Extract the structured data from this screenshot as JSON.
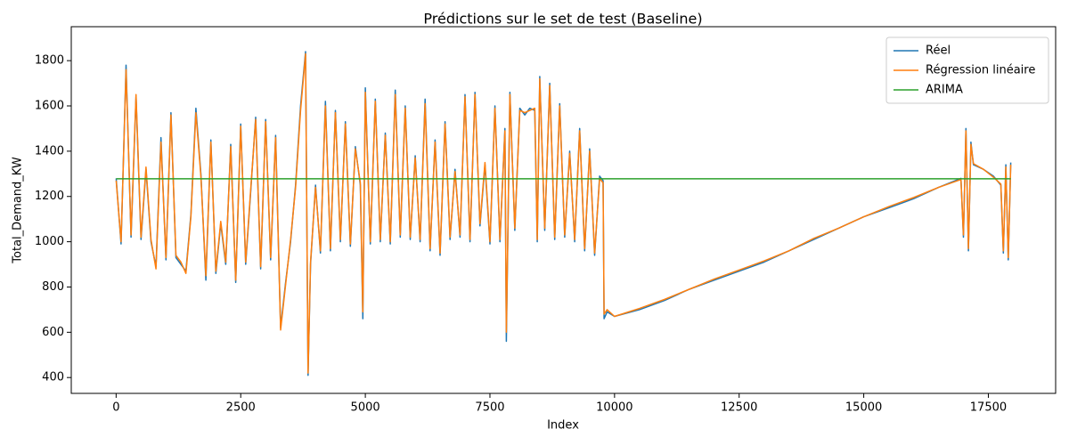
{
  "chart_data": {
    "type": "line",
    "title": "Prédictions sur le set de test (Baseline)",
    "x_label": "Index",
    "y_label": "Total_Demand_KW",
    "xlim": [
      -900,
      18850
    ],
    "ylim": [
      330,
      1950
    ],
    "xticks": [
      0,
      2500,
      5000,
      7500,
      10000,
      12500,
      15000,
      17500
    ],
    "yticks": [
      400,
      600,
      800,
      1000,
      1200,
      1400,
      1600,
      1800
    ],
    "legend": "upper-right",
    "series": [
      {
        "name": "Réel",
        "color": "#1f77b4",
        "x": [
          0,
          100,
          200,
          300,
          400,
          500,
          600,
          700,
          800,
          900,
          1000,
          1100,
          1200,
          1300,
          1400,
          1500,
          1600,
          1700,
          1800,
          1900,
          2000,
          2100,
          2200,
          2300,
          2400,
          2500,
          2600,
          2700,
          2800,
          2900,
          3000,
          3100,
          3200,
          3300,
          3400,
          3500,
          3600,
          3700,
          3800,
          3850,
          3900,
          4000,
          4100,
          4200,
          4300,
          4400,
          4500,
          4600,
          4700,
          4800,
          4900,
          4950,
          5000,
          5100,
          5200,
          5300,
          5400,
          5500,
          5600,
          5700,
          5800,
          5900,
          6000,
          6100,
          6200,
          6300,
          6400,
          6500,
          6600,
          6700,
          6800,
          6900,
          7000,
          7100,
          7200,
          7300,
          7400,
          7500,
          7600,
          7700,
          7800,
          7830,
          7900,
          8000,
          8100,
          8200,
          8300,
          8400,
          8450,
          8500,
          8600,
          8700,
          8800,
          8900,
          9000,
          9100,
          9200,
          9300,
          9400,
          9500,
          9600,
          9700,
          9770,
          9790,
          9850,
          10000,
          10500,
          11000,
          11500,
          12000,
          12500,
          13000,
          13500,
          14000,
          14500,
          15000,
          15500,
          16000,
          16500,
          16950,
          17000,
          17050,
          17100,
          17150,
          17200,
          17400,
          17600,
          17750,
          17800,
          17850,
          17900,
          17950
        ],
        "values": [
          1280,
          990,
          1780,
          1020,
          1640,
          1010,
          1320,
          1000,
          890,
          1460,
          920,
          1570,
          930,
          900,
          870,
          1120,
          1590,
          1300,
          830,
          1450,
          860,
          1080,
          900,
          1430,
          820,
          1520,
          900,
          1220,
          1550,
          880,
          1540,
          920,
          1470,
          620,
          820,
          1000,
          1250,
          1600,
          1840,
          410,
          900,
          1250,
          950,
          1620,
          960,
          1580,
          1000,
          1530,
          980,
          1420,
          1250,
          660,
          1680,
          990,
          1630,
          1000,
          1480,
          990,
          1670,
          1020,
          1600,
          1010,
          1380,
          1000,
          1630,
          960,
          1450,
          940,
          1530,
          1010,
          1320,
          1020,
          1650,
          1000,
          1660,
          1070,
          1340,
          990,
          1600,
          1000,
          1500,
          560,
          1660,
          1050,
          1590,
          1560,
          1590,
          1580,
          1000,
          1730,
          1050,
          1700,
          1010,
          1610,
          1020,
          1400,
          1000,
          1500,
          960,
          1410,
          940,
          1290,
          1270,
          660,
          690,
          670,
          700,
          740,
          790,
          830,
          870,
          910,
          960,
          1010,
          1060,
          1110,
          1150,
          1190,
          1240,
          1280,
          1020,
          1500,
          960,
          1440,
          1340,
          1320,
          1290,
          1250,
          950,
          1340,
          920,
          1350
        ]
      },
      {
        "name": "Régression linéaire",
        "color": "#ff7f0e",
        "x": [
          0,
          100,
          200,
          300,
          400,
          500,
          600,
          700,
          800,
          900,
          1000,
          1100,
          1200,
          1300,
          1400,
          1500,
          1600,
          1700,
          1800,
          1900,
          2000,
          2100,
          2200,
          2300,
          2400,
          2500,
          2600,
          2700,
          2800,
          2900,
          3000,
          3100,
          3200,
          3300,
          3400,
          3500,
          3600,
          3700,
          3800,
          3850,
          3900,
          4000,
          4100,
          4200,
          4300,
          4400,
          4500,
          4600,
          4700,
          4800,
          4900,
          4950,
          5000,
          5100,
          5200,
          5300,
          5400,
          5500,
          5600,
          5700,
          5800,
          5900,
          6000,
          6100,
          6200,
          6300,
          6400,
          6500,
          6600,
          6700,
          6800,
          6900,
          7000,
          7100,
          7200,
          7300,
          7400,
          7500,
          7600,
          7700,
          7800,
          7830,
          7900,
          8000,
          8100,
          8200,
          8300,
          8400,
          8450,
          8500,
          8600,
          8700,
          8800,
          8900,
          9000,
          9100,
          9200,
          9300,
          9400,
          9500,
          9600,
          9700,
          9770,
          9790,
          9850,
          10000,
          10500,
          11000,
          11500,
          12000,
          12500,
          13000,
          13500,
          14000,
          14500,
          15000,
          15500,
          16000,
          16500,
          16950,
          17000,
          17050,
          17100,
          17150,
          17200,
          17400,
          17600,
          17750,
          17800,
          17850,
          17900,
          17950
        ],
        "values": [
          1270,
          1000,
          1760,
          1030,
          1650,
          1020,
          1330,
          1010,
          880,
          1440,
          930,
          1560,
          940,
          910,
          860,
          1110,
          1570,
          1290,
          850,
          1440,
          870,
          1090,
          910,
          1420,
          830,
          1510,
          910,
          1230,
          1540,
          890,
          1530,
          930,
          1460,
          610,
          810,
          1010,
          1240,
          1580,
          1830,
          420,
          910,
          1240,
          960,
          1600,
          970,
          1570,
          1010,
          1520,
          990,
          1410,
          1260,
          690,
          1660,
          1000,
          1620,
          1010,
          1470,
          1000,
          1650,
          1030,
          1590,
          1020,
          1370,
          1010,
          1610,
          970,
          1440,
          950,
          1520,
          1020,
          1310,
          1030,
          1640,
          1010,
          1650,
          1080,
          1350,
          1000,
          1590,
          1010,
          1490,
          600,
          1650,
          1060,
          1580,
          1570,
          1580,
          1590,
          1010,
          1720,
          1060,
          1690,
          1020,
          1600,
          1030,
          1390,
          1010,
          1490,
          970,
          1400,
          950,
          1280,
          1260,
          680,
          700,
          670,
          705,
          745,
          790,
          835,
          875,
          915,
          960,
          1015,
          1060,
          1110,
          1155,
          1195,
          1240,
          1275,
          1030,
          1490,
          970,
          1430,
          1345,
          1320,
          1285,
          1255,
          960,
          1330,
          930,
          1340
        ]
      },
      {
        "name": "ARIMA",
        "color": "#2ca02c",
        "x": [
          0,
          17950
        ],
        "values": [
          1278,
          1278
        ]
      }
    ]
  }
}
